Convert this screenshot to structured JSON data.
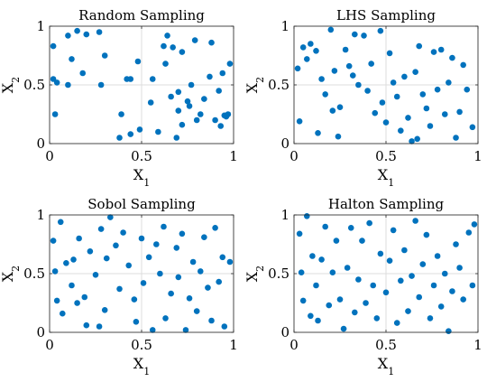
{
  "chart_data": [
    {
      "type": "scatter",
      "title": "Random Sampling",
      "xlabel": "X",
      "xlabel_sub": "1",
      "ylabel": "X",
      "ylabel_sub": "2",
      "xlim": [
        0,
        1
      ],
      "ylim": [
        0,
        1
      ],
      "xticks": [
        "0",
        "0.5",
        "1"
      ],
      "yticks": [
        "0",
        "0.5",
        "1"
      ],
      "grid": true,
      "color": "#0072BD",
      "points": [
        [
          0.02,
          0.83
        ],
        [
          0.02,
          0.55
        ],
        [
          0.03,
          0.25
        ],
        [
          0.04,
          0.52
        ],
        [
          0.1,
          0.92
        ],
        [
          0.1,
          0.5
        ],
        [
          0.12,
          0.72
        ],
        [
          0.15,
          0.96
        ],
        [
          0.18,
          0.6
        ],
        [
          0.2,
          0.93
        ],
        [
          0.27,
          0.95
        ],
        [
          0.28,
          0.5
        ],
        [
          0.3,
          0.75
        ],
        [
          0.38,
          0.05
        ],
        [
          0.39,
          0.25
        ],
        [
          0.42,
          0.55
        ],
        [
          0.44,
          0.55
        ],
        [
          0.44,
          0.08
        ],
        [
          0.48,
          0.7
        ],
        [
          0.49,
          0.12
        ],
        [
          0.55,
          0.35
        ],
        [
          0.56,
          0.55
        ],
        [
          0.59,
          0.1
        ],
        [
          0.62,
          0.83
        ],
        [
          0.63,
          0.68
        ],
        [
          0.64,
          0.92
        ],
        [
          0.66,
          0.4
        ],
        [
          0.67,
          0.82
        ],
        [
          0.69,
          0.05
        ],
        [
          0.7,
          0.28
        ],
        [
          0.7,
          0.44
        ],
        [
          0.72,
          0.78
        ],
        [
          0.72,
          0.16
        ],
        [
          0.75,
          0.36
        ],
        [
          0.76,
          0.32
        ],
        [
          0.77,
          0.5
        ],
        [
          0.79,
          0.88
        ],
        [
          0.8,
          0.2
        ],
        [
          0.82,
          0.25
        ],
        [
          0.84,
          0.38
        ],
        [
          0.87,
          0.57
        ],
        [
          0.88,
          0.86
        ],
        [
          0.9,
          0.2
        ],
        [
          0.92,
          0.45
        ],
        [
          0.93,
          0.15
        ],
        [
          0.94,
          0.6
        ],
        [
          0.95,
          0.24
        ],
        [
          0.96,
          0.23
        ],
        [
          0.97,
          0.25
        ],
        [
          0.98,
          0.68
        ]
      ]
    },
    {
      "type": "scatter",
      "title": "LHS Sampling",
      "xlabel": "X",
      "xlabel_sub": "1",
      "ylabel": "X",
      "ylabel_sub": "2",
      "xlim": [
        0,
        1
      ],
      "ylim": [
        0,
        1
      ],
      "xticks": [
        "0",
        "0.5",
        "1"
      ],
      "yticks": [
        "0",
        "0.5",
        "1"
      ],
      "grid": true,
      "color": "#0072BD",
      "points": [
        [
          0.02,
          0.64
        ],
        [
          0.03,
          0.19
        ],
        [
          0.05,
          0.82
        ],
        [
          0.07,
          0.72
        ],
        [
          0.09,
          0.85
        ],
        [
          0.12,
          0.79
        ],
        [
          0.13,
          0.09
        ],
        [
          0.15,
          0.55
        ],
        [
          0.17,
          0.42
        ],
        [
          0.2,
          0.97
        ],
        [
          0.21,
          0.28
        ],
        [
          0.22,
          0.62
        ],
        [
          0.24,
          0.06
        ],
        [
          0.25,
          0.31
        ],
        [
          0.28,
          0.8
        ],
        [
          0.3,
          0.66
        ],
        [
          0.32,
          0.58
        ],
        [
          0.33,
          0.93
        ],
        [
          0.35,
          0.5
        ],
        [
          0.38,
          0.92
        ],
        [
          0.4,
          0.45
        ],
        [
          0.42,
          0.68
        ],
        [
          0.44,
          0.26
        ],
        [
          0.47,
          0.96
        ],
        [
          0.48,
          0.35
        ],
        [
          0.5,
          0.18
        ],
        [
          0.52,
          0.77
        ],
        [
          0.54,
          0.52
        ],
        [
          0.56,
          0.4
        ],
        [
          0.58,
          0.11
        ],
        [
          0.6,
          0.57
        ],
        [
          0.62,
          0.22
        ],
        [
          0.64,
          0.02
        ],
        [
          0.66,
          0.61
        ],
        [
          0.67,
          0.04
        ],
        [
          0.68,
          0.83
        ],
        [
          0.7,
          0.42
        ],
        [
          0.72,
          0.3
        ],
        [
          0.74,
          0.15
        ],
        [
          0.76,
          0.78
        ],
        [
          0.78,
          0.46
        ],
        [
          0.8,
          0.8
        ],
        [
          0.82,
          0.25
        ],
        [
          0.84,
          0.52
        ],
        [
          0.86,
          0.73
        ],
        [
          0.88,
          0.05
        ],
        [
          0.9,
          0.27
        ],
        [
          0.92,
          0.67
        ],
        [
          0.94,
          0.46
        ],
        [
          0.97,
          0.14
        ]
      ]
    },
    {
      "type": "scatter",
      "title": "Sobol Sampling",
      "xlabel": "X",
      "xlabel_sub": "1",
      "ylabel": "X",
      "ylabel_sub": "2",
      "xlim": [
        0,
        1
      ],
      "ylim": [
        0,
        1
      ],
      "xticks": [
        "0",
        "0.5",
        "1"
      ],
      "yticks": [
        "0",
        "0.5",
        "1"
      ],
      "grid": true,
      "color": "#0072BD",
      "points": [
        [
          0.02,
          0.78
        ],
        [
          0.03,
          0.52
        ],
        [
          0.04,
          0.27
        ],
        [
          0.06,
          0.94
        ],
        [
          0.07,
          0.16
        ],
        [
          0.09,
          0.59
        ],
        [
          0.12,
          0.4
        ],
        [
          0.13,
          0.62
        ],
        [
          0.15,
          0.25
        ],
        [
          0.16,
          0.8
        ],
        [
          0.19,
          0.3
        ],
        [
          0.2,
          0.06
        ],
        [
          0.22,
          0.69
        ],
        [
          0.25,
          0.49
        ],
        [
          0.27,
          0.05
        ],
        [
          0.28,
          0.88
        ],
        [
          0.3,
          0.19
        ],
        [
          0.31,
          0.63
        ],
        [
          0.33,
          0.98
        ],
        [
          0.36,
          0.74
        ],
        [
          0.38,
          0.37
        ],
        [
          0.4,
          0.85
        ],
        [
          0.43,
          0.57
        ],
        [
          0.46,
          0.28
        ],
        [
          0.47,
          0.09
        ],
        [
          0.5,
          0.8
        ],
        [
          0.51,
          0.42
        ],
        [
          0.54,
          0.64
        ],
        [
          0.56,
          0.02
        ],
        [
          0.58,
          0.75
        ],
        [
          0.6,
          0.5
        ],
        [
          0.62,
          0.9
        ],
        [
          0.63,
          0.12
        ],
        [
          0.66,
          0.33
        ],
        [
          0.69,
          0.72
        ],
        [
          0.7,
          0.47
        ],
        [
          0.72,
          0.84
        ],
        [
          0.74,
          0.02
        ],
        [
          0.76,
          0.29
        ],
        [
          0.78,
          0.6
        ],
        [
          0.8,
          0.18
        ],
        [
          0.82,
          0.52
        ],
        [
          0.84,
          0.81
        ],
        [
          0.86,
          0.38
        ],
        [
          0.88,
          0.1
        ],
        [
          0.9,
          0.89
        ],
        [
          0.92,
          0.43
        ],
        [
          0.94,
          0.64
        ],
        [
          0.95,
          0.05
        ],
        [
          0.98,
          0.6
        ]
      ]
    },
    {
      "type": "scatter",
      "title": "Halton Sampling",
      "xlabel": "X",
      "xlabel_sub": "1",
      "ylabel": "X",
      "ylabel_sub": "2",
      "xlim": [
        0,
        1
      ],
      "ylim": [
        0,
        1
      ],
      "xticks": [
        "0",
        "0.5",
        "1"
      ],
      "yticks": [
        "0",
        "0.5",
        "1"
      ],
      "grid": true,
      "color": "#0072BD",
      "points": [
        [
          0.03,
          0.84
        ],
        [
          0.04,
          0.51
        ],
        [
          0.05,
          0.27
        ],
        [
          0.07,
          0.99
        ],
        [
          0.09,
          0.14
        ],
        [
          0.1,
          0.65
        ],
        [
          0.12,
          0.4
        ],
        [
          0.13,
          0.1
        ],
        [
          0.15,
          0.62
        ],
        [
          0.17,
          0.9
        ],
        [
          0.19,
          0.23
        ],
        [
          0.21,
          0.51
        ],
        [
          0.23,
          0.78
        ],
        [
          0.25,
          0.28
        ],
        [
          0.27,
          0.03
        ],
        [
          0.29,
          0.55
        ],
        [
          0.31,
          0.89
        ],
        [
          0.33,
          0.17
        ],
        [
          0.35,
          0.45
        ],
        [
          0.37,
          0.78
        ],
        [
          0.39,
          0.25
        ],
        [
          0.41,
          0.93
        ],
        [
          0.43,
          0.4
        ],
        [
          0.45,
          0.12
        ],
        [
          0.47,
          0.67
        ],
        [
          0.5,
          0.34
        ],
        [
          0.52,
          0.61
        ],
        [
          0.54,
          0.87
        ],
        [
          0.56,
          0.08
        ],
        [
          0.58,
          0.44
        ],
        [
          0.6,
          0.7
        ],
        [
          0.62,
          0.18
        ],
        [
          0.64,
          0.48
        ],
        [
          0.66,
          0.95
        ],
        [
          0.68,
          0.3
        ],
        [
          0.7,
          0.58
        ],
        [
          0.72,
          0.83
        ],
        [
          0.74,
          0.12
        ],
        [
          0.76,
          0.4
        ],
        [
          0.78,
          0.65
        ],
        [
          0.8,
          0.22
        ],
        [
          0.82,
          0.5
        ],
        [
          0.84,
          0.01
        ],
        [
          0.86,
          0.35
        ],
        [
          0.88,
          0.75
        ],
        [
          0.9,
          0.55
        ],
        [
          0.92,
          0.28
        ],
        [
          0.95,
          0.85
        ],
        [
          0.97,
          0.4
        ],
        [
          0.98,
          0.92
        ]
      ]
    }
  ]
}
